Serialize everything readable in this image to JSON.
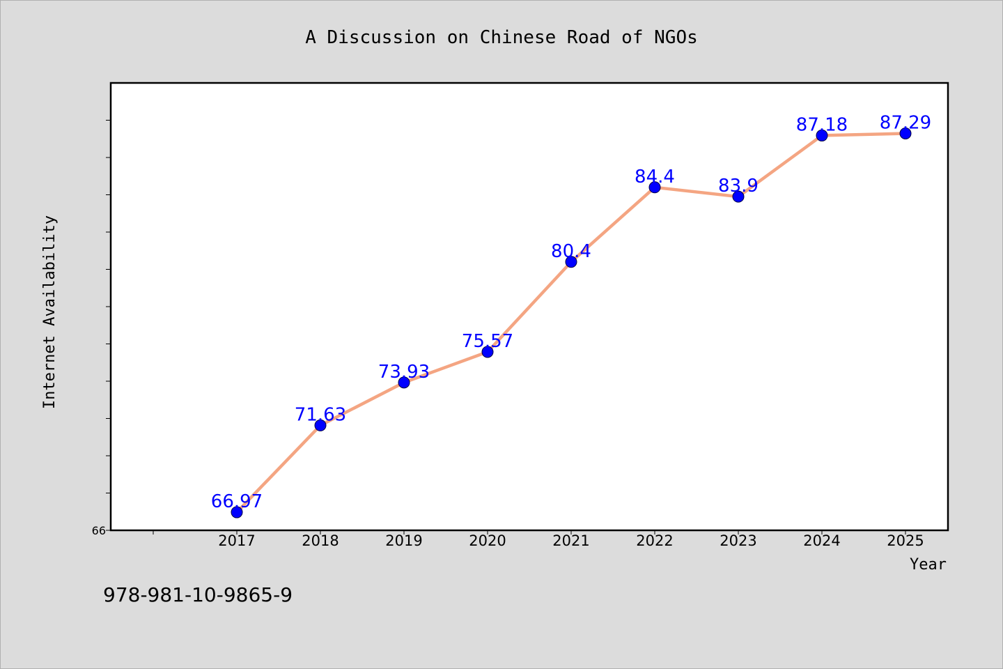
{
  "chart_data": {
    "type": "line",
    "title": "A Discussion on Chinese Road of NGOs",
    "xlabel": "Year",
    "ylabel": "Internet Availability",
    "categories": [
      "2017",
      "2018",
      "2019",
      "2020",
      "2021",
      "2022",
      "2023",
      "2024",
      "2025"
    ],
    "series": [
      {
        "values": [
          66.97,
          71.63,
          73.93,
          75.57,
          80.4,
          84.4,
          83.9,
          87.18,
          87.29
        ]
      }
    ],
    "data_labels": [
      "66.97",
      "71.63",
      "73.93",
      "75.57",
      "80.4",
      "84.4",
      "83.9",
      "87.18",
      "87.29"
    ],
    "y_tick_labels": [
      "66"
    ],
    "ylim": [
      66,
      90
    ],
    "grid": false,
    "legend": "none",
    "colors": {
      "line": "#f4a582",
      "marker": "#0000ff",
      "data_label": "#0000ff",
      "background": "#dcdcdc",
      "plot_background": "#ffffff"
    }
  },
  "footer": {
    "isbn": "978-981-10-9865-9"
  }
}
